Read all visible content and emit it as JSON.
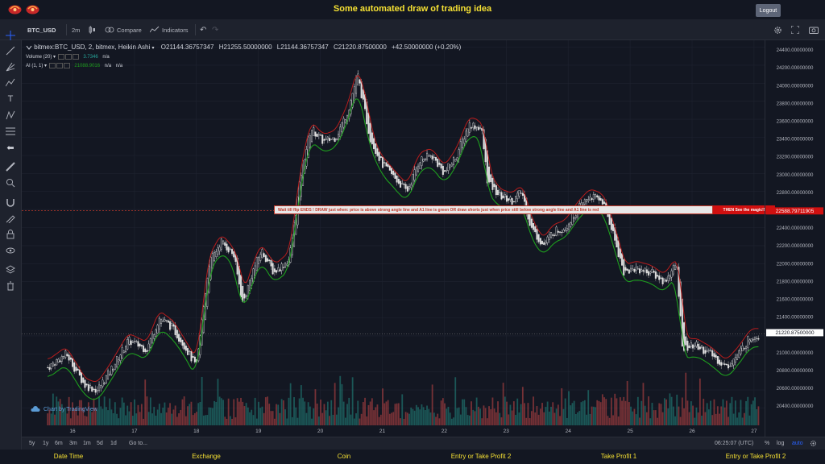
{
  "header": {
    "title": "Some automated draw of trading idea",
    "logout_label": "Logout"
  },
  "toolbar": {
    "symbol": "BTC_USD",
    "interval": "2m",
    "compare_label": "Compare",
    "indicators_label": "Indicators"
  },
  "legend": {
    "main_title": "bitmex:BTC_USD, 2, bitmex, Heikin Ashi",
    "open": "O21144.36757347",
    "high": "H21255.50000000",
    "low": "L21144.36757347",
    "close": "C21220.87500000",
    "change": "+42.50000000 (+0.20%)",
    "volume_label": "Volume (20)",
    "volume_value": "3.7346",
    "volume_na": "n/a",
    "ai_label": "AI (1, 1)",
    "ai_value": "21088.9016",
    "ai_na1": "n/a",
    "ai_na2": "n/a"
  },
  "banner": {
    "text": "Wait till flip ENDS !   DRAW just when:  price is above strong angle line and A1 line is green        OR        draw shorts just when price still below strong angle line and A1 line is red",
    "cta": "THEN See the magic!!"
  },
  "price_axis": {
    "labels": [
      "24400.00000000",
      "24200.00000000",
      "24000.00000000",
      "23800.00000000",
      "23600.00000000",
      "23400.00000000",
      "23200.00000000",
      "23000.00000000",
      "22800.00000000",
      "22600.00000000",
      "22400.00000000",
      "22200.00000000",
      "22000.00000000",
      "21800.00000000",
      "21600.00000000",
      "21400.00000000",
      "21200.00000000",
      "21000.00000000",
      "20800.00000000",
      "20600.00000000",
      "20400.00000000"
    ],
    "marker_red": "22588.79711905",
    "marker_current": "21220.87500000"
  },
  "time_axis": {
    "labels": [
      "16",
      "17",
      "18",
      "19",
      "20",
      "21",
      "22",
      "23",
      "24",
      "25",
      "26",
      "27"
    ]
  },
  "bottom_bar": {
    "ranges": [
      "5y",
      "1y",
      "6m",
      "3m",
      "1m",
      "5d",
      "1d"
    ],
    "goto": "Go to...",
    "time": "06:25:07 (UTC)",
    "percent": "%",
    "log": "log",
    "auto": "auto"
  },
  "watermark": "Chart by TradingView",
  "footer": {
    "labels": [
      "Date Time",
      "Exchange",
      "Coin",
      "Entry or Take Profit 2",
      "Take Profit 1",
      "Entry or Take Profit 2"
    ]
  },
  "colors": {
    "title": "#f5e033",
    "bull": "#26a69a",
    "bear": "#ef5350",
    "ai_line_green": "#1e9e1e",
    "upper_line_red": "#b71c1c",
    "banner_red": "#d01010"
  },
  "chart_data": {
    "type": "candlestick",
    "style": "Heikin Ashi",
    "x": [
      "16",
      "17",
      "18",
      "19",
      "20",
      "21",
      "22",
      "23",
      "24",
      "25",
      "26",
      "27"
    ],
    "ylim": [
      20300,
      24500
    ],
    "close_path": [
      [
        15.6,
        20850
      ],
      [
        15.9,
        21000
      ],
      [
        16.2,
        20650
      ],
      [
        16.4,
        20600
      ],
      [
        16.6,
        20800
      ],
      [
        16.9,
        21150
      ],
      [
        17.2,
        21050
      ],
      [
        17.4,
        21400
      ],
      [
        17.6,
        21300
      ],
      [
        17.8,
        21100
      ],
      [
        18.0,
        20850
      ],
      [
        18.2,
        22000
      ],
      [
        18.4,
        22250
      ],
      [
        18.6,
        22100
      ],
      [
        18.75,
        21550
      ],
      [
        18.9,
        21900
      ],
      [
        19.05,
        22150
      ],
      [
        19.25,
        21900
      ],
      [
        19.5,
        22050
      ],
      [
        19.7,
        23050
      ],
      [
        19.85,
        23500
      ],
      [
        20.05,
        23350
      ],
      [
        20.25,
        23400
      ],
      [
        20.45,
        23700
      ],
      [
        20.6,
        24100
      ],
      [
        20.8,
        23400
      ],
      [
        21.0,
        23100
      ],
      [
        21.2,
        22950
      ],
      [
        21.4,
        22800
      ],
      [
        21.6,
        23150
      ],
      [
        21.8,
        23200
      ],
      [
        22.0,
        23000
      ],
      [
        22.2,
        23200
      ],
      [
        22.4,
        23550
      ],
      [
        22.6,
        23500
      ],
      [
        22.7,
        22900
      ],
      [
        22.9,
        22750
      ],
      [
        23.1,
        22700
      ],
      [
        23.25,
        22800
      ],
      [
        23.4,
        22400
      ],
      [
        23.6,
        22200
      ],
      [
        23.75,
        22350
      ],
      [
        23.95,
        22400
      ],
      [
        24.15,
        22600
      ],
      [
        24.35,
        22750
      ],
      [
        24.55,
        22700
      ],
      [
        24.7,
        22400
      ],
      [
        24.9,
        21900
      ],
      [
        25.1,
        21950
      ],
      [
        25.35,
        21900
      ],
      [
        25.55,
        21800
      ],
      [
        25.75,
        22000
      ],
      [
        25.85,
        21050
      ],
      [
        26.05,
        21100
      ],
      [
        26.3,
        21000
      ],
      [
        26.55,
        20850
      ],
      [
        26.75,
        21000
      ],
      [
        26.95,
        21200
      ],
      [
        27.1,
        21200
      ]
    ],
    "series": [
      {
        "name": "Volume (20)",
        "last_value": 3.7346
      },
      {
        "name": "AI (1, 1)",
        "last_value": 21088.9016
      }
    ],
    "horizontal_line": 22588.79711905,
    "current_price": 21220.875
  }
}
